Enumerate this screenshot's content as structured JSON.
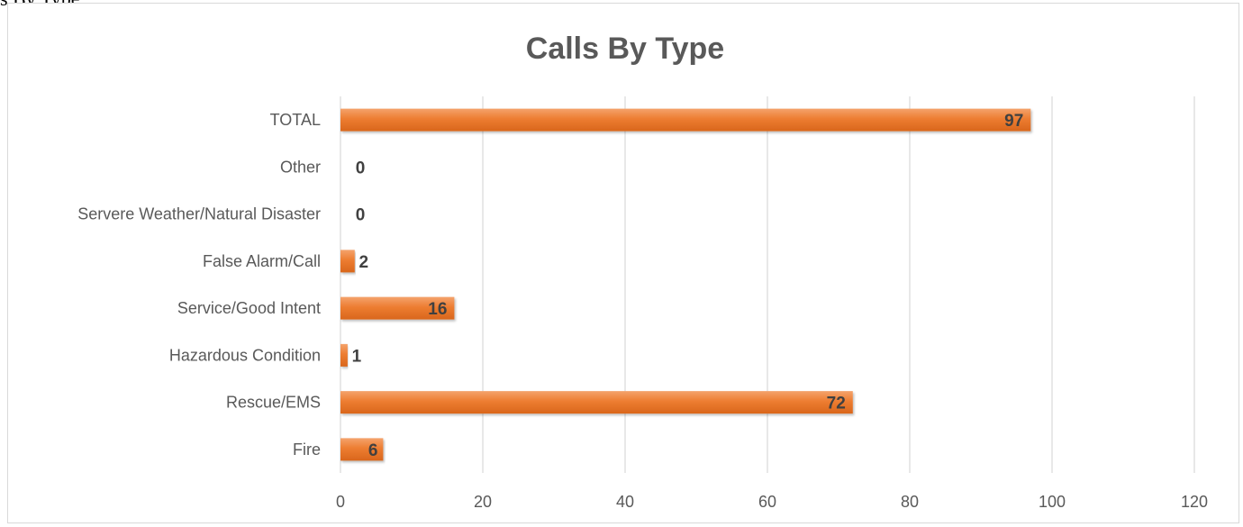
{
  "header_fragment": "s By Type",
  "chart_data": {
    "type": "bar",
    "orientation": "horizontal",
    "title": "Calls By Type",
    "categories": [
      "TOTAL",
      "Other",
      "Servere Weather/Natural Disaster",
      "False Alarm/Call",
      "Service/Good Intent",
      "Hazardous Condition",
      "Rescue/EMS",
      "Fire"
    ],
    "values": [
      97,
      0,
      0,
      2,
      16,
      1,
      72,
      6
    ],
    "data_labels": [
      "97",
      "0",
      "0",
      "2",
      "16",
      "1",
      "72",
      "6"
    ],
    "xlim": [
      0,
      120
    ],
    "xticks": [
      0,
      20,
      40,
      60,
      80,
      100,
      120
    ],
    "xtick_labels": [
      "0",
      "20",
      "40",
      "60",
      "80",
      "100",
      "120"
    ],
    "grid": "vertical",
    "bar_color": "#ed7d31",
    "legend": "none"
  }
}
